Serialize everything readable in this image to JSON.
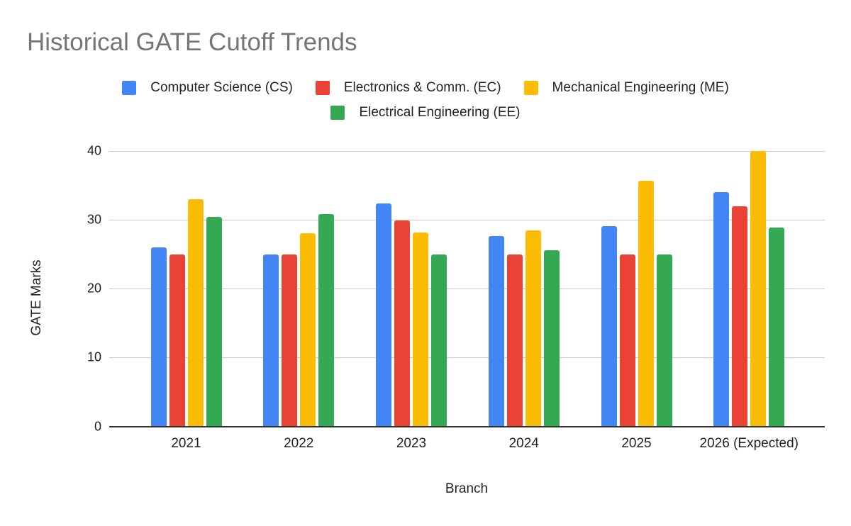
{
  "chart_data": {
    "type": "bar",
    "title": "Historical GATE Cutoff Trends",
    "xlabel": "Branch",
    "ylabel": "GATE Marks",
    "ylim": [
      0,
      40
    ],
    "yticks": [
      0,
      10,
      20,
      30,
      40
    ],
    "grid": true,
    "legend_position": "top",
    "categories": [
      "2021",
      "2022",
      "2023",
      "2024",
      "2025",
      "2026 (Expected)"
    ],
    "series": [
      {
        "name": "Computer Science (CS)",
        "color": "#4285f4",
        "values": [
          26.0,
          25.0,
          32.4,
          27.7,
          29.1,
          34.0
        ]
      },
      {
        "name": "Electronics & Comm. (EC)",
        "color": "#ea4335",
        "values": [
          25.0,
          25.0,
          29.9,
          25.0,
          25.0,
          32.0
        ]
      },
      {
        "name": "Mechanical Engineering (ME)",
        "color": "#fbbc04",
        "values": [
          33.0,
          28.1,
          28.2,
          28.5,
          35.7,
          40.0
        ]
      },
      {
        "name": "Electrical Engineering (EE)",
        "color": "#34a853",
        "values": [
          30.4,
          30.8,
          25.0,
          25.6,
          25.0,
          28.9
        ]
      }
    ]
  },
  "legend": {
    "row1": [
      "Computer Science (CS)",
      "Electronics & Comm. (EC)",
      "Mechanical Engineering (ME)"
    ],
    "row2": [
      "Electrical Engineering (EE)"
    ]
  },
  "axis": {
    "y_ticks": [
      "0",
      "10",
      "20",
      "30",
      "40"
    ],
    "x_ticks": [
      "2021",
      "2022",
      "2023",
      "2024",
      "2025",
      "2026 (Expected)"
    ]
  }
}
